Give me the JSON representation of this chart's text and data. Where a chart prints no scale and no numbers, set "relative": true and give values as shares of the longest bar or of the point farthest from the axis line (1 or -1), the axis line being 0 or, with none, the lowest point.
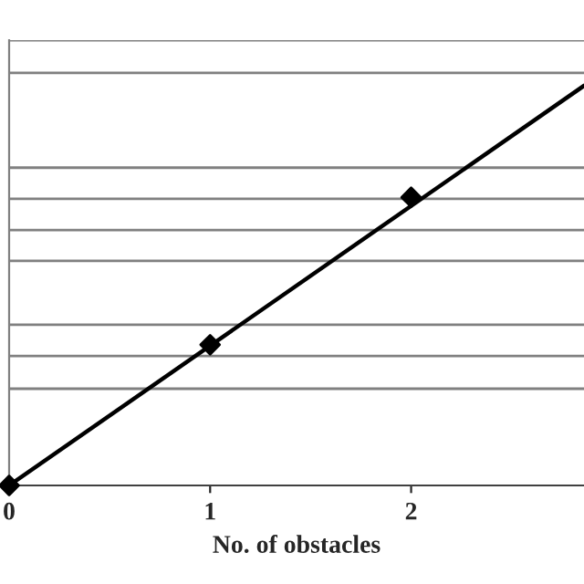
{
  "chart_data": {
    "type": "line",
    "xlabel": "No. of obstacles",
    "relative": true,
    "xlim": [
      0,
      2.86
    ],
    "xticks": [
      0,
      1,
      2
    ],
    "tick_labels": "x",
    "series": [
      {
        "color": "#000000",
        "x": [
          0,
          2.86
        ],
        "values": [
          0,
          1
        ]
      },
      {
        "type": "scatter",
        "marker": "diamond",
        "color": "#000000",
        "x": [
          0,
          1,
          2
        ],
        "values": [
          0,
          0.352,
          0.721
        ]
      }
    ],
    "ref_lines": [
      {
        "axis": "y",
        "value": 1.114,
        "color": "#808080"
      },
      {
        "axis": "y",
        "value": 1.032,
        "color": "#808080"
      },
      {
        "axis": "y",
        "value": 0.795,
        "color": "#808080"
      },
      {
        "axis": "y",
        "value": 0.717,
        "color": "#808080"
      },
      {
        "axis": "y",
        "value": 0.639,
        "color": "#808080"
      },
      {
        "axis": "y",
        "value": 0.562,
        "color": "#808080"
      },
      {
        "axis": "y",
        "value": 0.402,
        "color": "#808080"
      },
      {
        "axis": "y",
        "value": 0.324,
        "color": "#808080"
      },
      {
        "axis": "y",
        "value": 0.242,
        "color": "#808080"
      }
    ]
  }
}
